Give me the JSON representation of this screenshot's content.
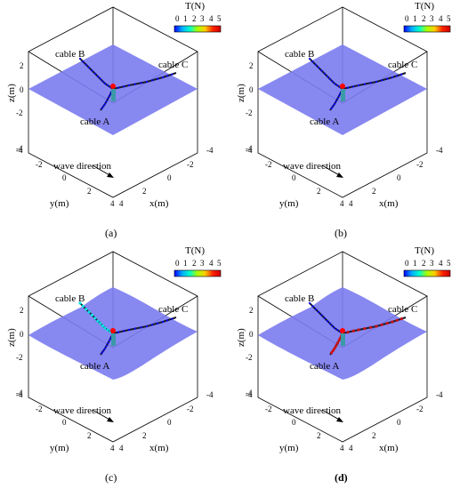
{
  "colorbar": {
    "title": "T(N)",
    "ticks": [
      "0",
      "1",
      "2",
      "3",
      "4",
      "5"
    ],
    "gradient_colors": [
      "#0000ff",
      "#00aaff",
      "#00ffcc",
      "#aaff00",
      "#ffcc00",
      "#ff2200",
      "#cc0000"
    ]
  },
  "axes": {
    "z_label": "z(m)",
    "z_ticks": [
      "2",
      "0",
      "-2",
      "-4"
    ],
    "y_label": "y(m)",
    "y_ticks": [
      "-4",
      "-2",
      "0",
      "2",
      "4"
    ],
    "x_label": "x(m)",
    "x_ticks": [
      "-4",
      "-2",
      "0",
      "2",
      "4"
    ]
  },
  "labels": {
    "cable_a": "cable A",
    "cable_b": "cable B",
    "cable_c": "cable C",
    "wave_direction": "wave direction"
  },
  "colors": {
    "sea_surface": "#7b7bf0",
    "cable_dark": "#1a1a2e",
    "tension_low": "#0000ff",
    "tension_mid": "#00e5e5",
    "tension_high": "#cc1010",
    "float_marker": "#ff0000",
    "buoy_body": "#3a9aa8"
  },
  "panels": [
    {
      "caption": "(a)",
      "cables": {
        "A": "low",
        "B": "low",
        "C": "low"
      },
      "surface": "flat"
    },
    {
      "caption": "(b)",
      "cables": {
        "A": "low",
        "B": "low",
        "C": "low"
      },
      "surface": "flat"
    },
    {
      "caption": "(c)",
      "cables": {
        "A": "low",
        "B": "mid",
        "C": "low"
      },
      "surface": "wavy"
    },
    {
      "caption": "(d)",
      "cables": {
        "A": "high",
        "B": "low",
        "C": "high"
      },
      "surface": "wavy"
    }
  ]
}
